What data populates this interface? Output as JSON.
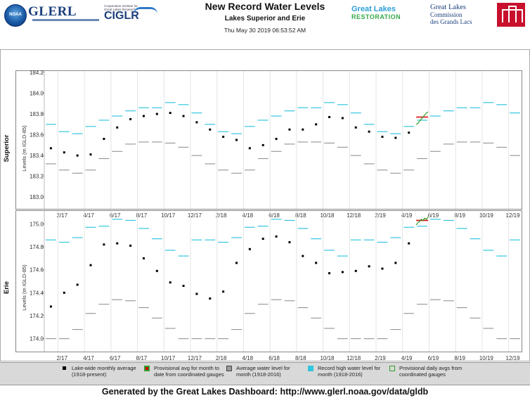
{
  "header": {
    "title": "New Record Water Levels",
    "subtitle": "Lakes Superior and Erie",
    "timestamp": "Thu May 30 2019 06:53:52 AM"
  },
  "logos": {
    "noaa": "NOAA",
    "glerl": "GLERL",
    "ciglr_small": "Cooperative Institute for Great Lakes Research",
    "ciglr": "CIGLR",
    "glr_line1": "Great Lakes",
    "glr_line2": "RESTORATION",
    "glc_line1": "Great Lakes",
    "glc_line2": "Commission",
    "glc_line3": "des Grands Lacs"
  },
  "colors": {
    "record_high": "#33c6e0",
    "average": "#888888",
    "monthly": "#000000",
    "provisional_month": "#d40000",
    "provisional_daily": "#33a02c"
  },
  "legend": {
    "monthly": "Lake-wide monthly average (1918-present)",
    "prov_month": "Provisional avg for month to date from coordinated gauges",
    "average": "Average water level for month (1918-2016)",
    "record": "Record high water level for month (1918-2016)",
    "prov_daily": "Provisional daily avgs from coordinated gauges"
  },
  "footer": "Generated by the Great Lakes Dashboard: http://www.glerl.noaa.gov/data/gldb",
  "chart_data": [
    {
      "type": "line",
      "lake": "Superior",
      "ylabel": "Levels (m IGLD-85)",
      "ylim": [
        182.9,
        184.2
      ],
      "yticks": [
        "184.2",
        "184.0",
        "183.8",
        "183.6",
        "183.4",
        "183.2",
        "183.0"
      ],
      "ytick_values": [
        184.2,
        184.0,
        183.8,
        183.6,
        183.4,
        183.2,
        183.0
      ],
      "x_start": "2017-01",
      "x_months": 36,
      "xticks": [
        "2/17",
        "4/17",
        "6/17",
        "8/17",
        "10/17",
        "12/17",
        "2/18",
        "4/18",
        "6/18",
        "8/18",
        "10/18",
        "12/18",
        "2/19",
        "4/19",
        "6/19",
        "8/19",
        "10/19",
        "12/19"
      ],
      "monthly_avg": [
        183.47,
        183.43,
        183.4,
        183.41,
        183.56,
        183.67,
        183.75,
        183.78,
        183.8,
        183.81,
        183.78,
        183.72,
        183.65,
        183.58,
        183.55,
        183.47,
        183.5,
        183.56,
        183.65,
        183.65,
        183.7,
        183.77,
        183.76,
        183.67,
        183.63,
        183.58,
        183.57,
        183.62
      ],
      "average_level": [
        183.32,
        183.26,
        183.23,
        183.26,
        183.37,
        183.44,
        183.51,
        183.53,
        183.53,
        183.52,
        183.48,
        183.4
      ],
      "record_high": [
        183.7,
        183.63,
        183.61,
        183.68,
        183.74,
        183.78,
        183.83,
        183.86,
        183.86,
        183.91,
        183.89,
        183.81
      ],
      "provisional_month": 183.77,
      "provisional_daily": [
        183.7,
        183.71,
        183.73,
        183.75,
        183.77,
        183.79,
        183.81,
        183.82
      ]
    },
    {
      "type": "line",
      "lake": "Erie",
      "ylabel": "Levels (m IGLD-85)",
      "ylim": [
        173.9,
        175.1
      ],
      "yticks": [
        "175.0",
        "174.8",
        "174.6",
        "174.4",
        "174.2",
        "174.0"
      ],
      "ytick_values": [
        175.0,
        174.8,
        174.6,
        174.4,
        174.2,
        174.0
      ],
      "x_start": "2017-01",
      "x_months": 36,
      "xticks": [
        "2/17",
        "4/17",
        "6/17",
        "8/17",
        "10/17",
        "12/17",
        "2/18",
        "4/18",
        "6/18",
        "8/18",
        "10/18",
        "12/18",
        "2/19",
        "4/19",
        "6/19",
        "8/19",
        "10/19",
        "12/19"
      ],
      "monthly_avg": [
        174.28,
        174.4,
        174.47,
        174.64,
        174.82,
        174.83,
        174.81,
        174.7,
        174.59,
        174.49,
        174.46,
        174.39,
        174.35,
        174.41,
        174.66,
        174.78,
        174.87,
        174.89,
        174.84,
        174.72,
        174.66,
        174.57,
        174.58,
        174.59,
        174.63,
        174.61,
        174.66,
        174.83
      ],
      "average_level": [
        174.0,
        174.0,
        174.08,
        174.22,
        174.3,
        174.34,
        174.33,
        174.27,
        174.18,
        174.09,
        174.0,
        174.0
      ],
      "record_high": [
        174.86,
        174.84,
        174.88,
        174.97,
        174.98,
        175.04,
        175.03,
        174.96,
        174.87,
        174.77,
        174.72,
        174.86
      ],
      "provisional_month": 175.03,
      "provisional_daily": [
        174.99,
        175.01,
        175.02,
        175.04,
        175.03,
        175.05,
        175.04,
        175.06
      ]
    }
  ]
}
